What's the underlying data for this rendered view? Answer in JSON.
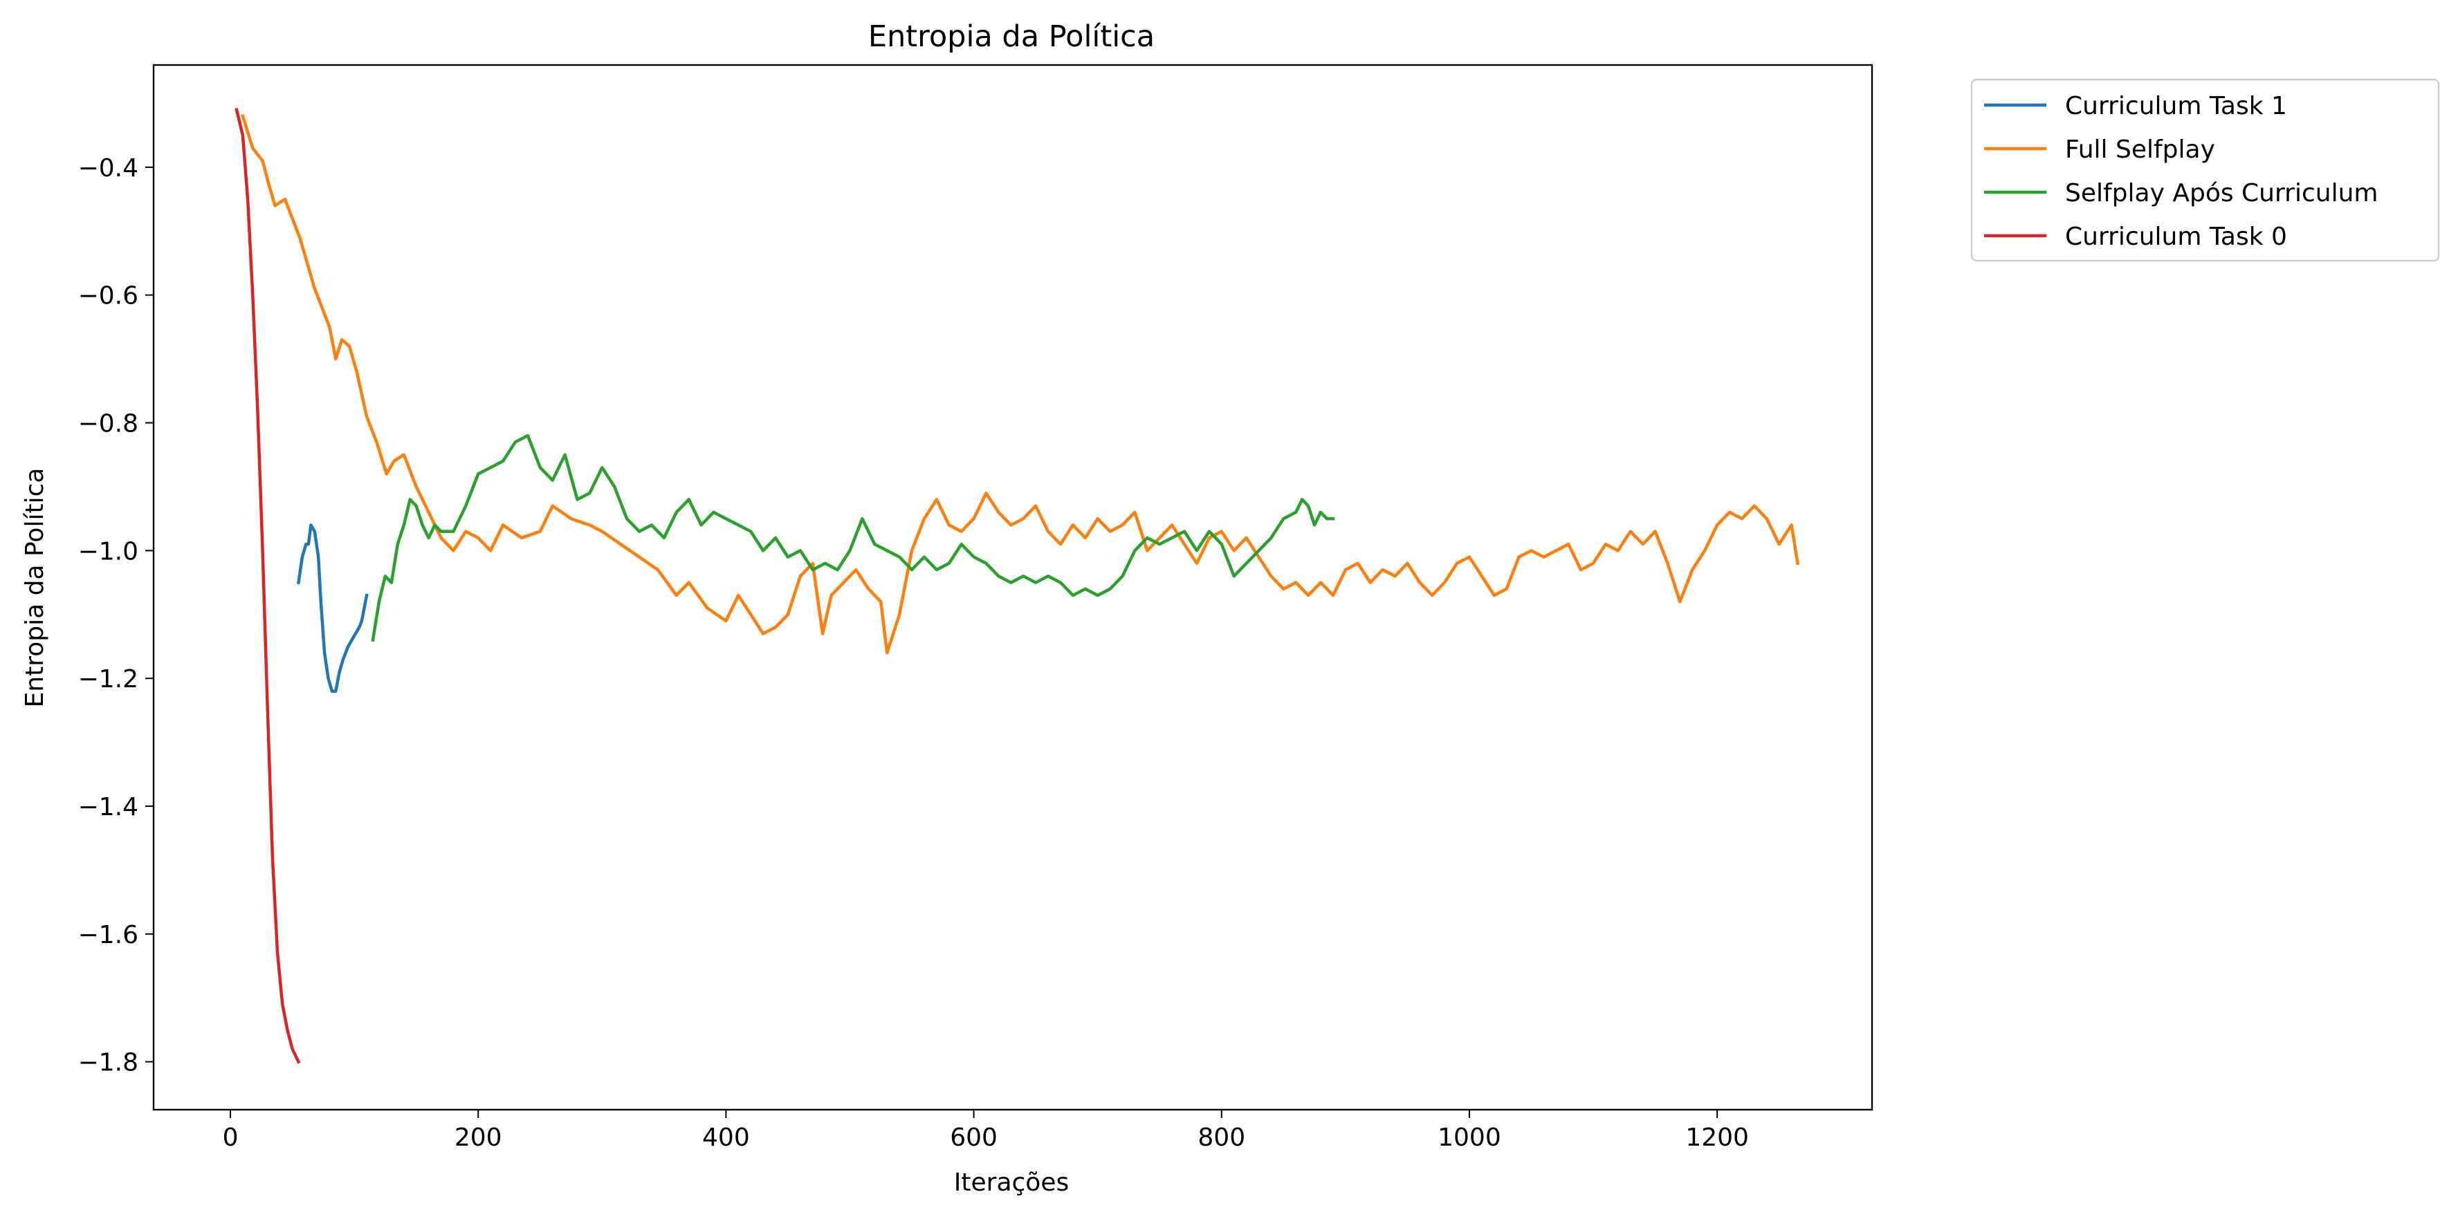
{
  "chart_data": {
    "type": "line",
    "title": "Entropia da Política",
    "xlabel": "Iterações",
    "ylabel": "Entropia da Política",
    "xlim": [
      -62,
      1325
    ],
    "ylim": [
      -1.875,
      -0.24
    ],
    "xticks": [
      0,
      200,
      400,
      600,
      800,
      1000,
      1200
    ],
    "yticks": [
      -1.8,
      -1.6,
      -1.4,
      -1.2,
      -1.0,
      -0.8,
      -0.6,
      -0.4
    ],
    "xtick_labels": [
      "0",
      "200",
      "400",
      "600",
      "800",
      "1000",
      "1200"
    ],
    "ytick_labels": [
      "−1.8",
      "−1.6",
      "−1.4",
      "−1.2",
      "−1.0",
      "−0.8",
      "−0.6",
      "−0.4"
    ],
    "grid": false,
    "legend_position": "outside-top-right",
    "series": [
      {
        "name": "Curriculum Task 1",
        "color": "#1f77b4",
        "points": [
          [
            55,
            -1.05
          ],
          [
            58,
            -1.01
          ],
          [
            61,
            -0.99
          ],
          [
            63,
            -0.99
          ],
          [
            65,
            -0.96
          ],
          [
            68,
            -0.97
          ],
          [
            71,
            -1.01
          ],
          [
            73,
            -1.08
          ],
          [
            76,
            -1.16
          ],
          [
            79,
            -1.2
          ],
          [
            82,
            -1.22
          ],
          [
            85,
            -1.22
          ],
          [
            88,
            -1.19
          ],
          [
            91,
            -1.17
          ],
          [
            95,
            -1.15
          ],
          [
            98,
            -1.14
          ],
          [
            101,
            -1.13
          ],
          [
            104,
            -1.12
          ],
          [
            106,
            -1.11
          ],
          [
            108,
            -1.09
          ],
          [
            110,
            -1.07
          ]
        ]
      },
      {
        "name": "Full Selfplay",
        "color": "#ff7f0e",
        "points": [
          [
            10,
            -0.32
          ],
          [
            18,
            -0.37
          ],
          [
            22,
            -0.38
          ],
          [
            26,
            -0.39
          ],
          [
            30,
            -0.42
          ],
          [
            36,
            -0.46
          ],
          [
            44,
            -0.45
          ],
          [
            50,
            -0.48
          ],
          [
            56,
            -0.51
          ],
          [
            62,
            -0.55
          ],
          [
            68,
            -0.59
          ],
          [
            74,
            -0.62
          ],
          [
            80,
            -0.65
          ],
          [
            85,
            -0.7
          ],
          [
            90,
            -0.67
          ],
          [
            96,
            -0.68
          ],
          [
            102,
            -0.72
          ],
          [
            110,
            -0.79
          ],
          [
            118,
            -0.83
          ],
          [
            126,
            -0.88
          ],
          [
            132,
            -0.86
          ],
          [
            140,
            -0.85
          ],
          [
            150,
            -0.9
          ],
          [
            160,
            -0.94
          ],
          [
            170,
            -0.98
          ],
          [
            180,
            -1.0
          ],
          [
            190,
            -0.97
          ],
          [
            200,
            -0.98
          ],
          [
            210,
            -1.0
          ],
          [
            220,
            -0.96
          ],
          [
            235,
            -0.98
          ],
          [
            250,
            -0.97
          ],
          [
            260,
            -0.93
          ],
          [
            275,
            -0.95
          ],
          [
            290,
            -0.96
          ],
          [
            300,
            -0.97
          ],
          [
            315,
            -0.99
          ],
          [
            330,
            -1.01
          ],
          [
            345,
            -1.03
          ],
          [
            360,
            -1.07
          ],
          [
            370,
            -1.05
          ],
          [
            385,
            -1.09
          ],
          [
            400,
            -1.11
          ],
          [
            410,
            -1.07
          ],
          [
            420,
            -1.1
          ],
          [
            430,
            -1.13
          ],
          [
            440,
            -1.12
          ],
          [
            450,
            -1.1
          ],
          [
            460,
            -1.04
          ],
          [
            470,
            -1.02
          ],
          [
            478,
            -1.13
          ],
          [
            485,
            -1.07
          ],
          [
            495,
            -1.05
          ],
          [
            505,
            -1.03
          ],
          [
            515,
            -1.06
          ],
          [
            525,
            -1.08
          ],
          [
            530,
            -1.16
          ],
          [
            540,
            -1.1
          ],
          [
            550,
            -1.0
          ],
          [
            560,
            -0.95
          ],
          [
            570,
            -0.92
          ],
          [
            580,
            -0.96
          ],
          [
            590,
            -0.97
          ],
          [
            600,
            -0.95
          ],
          [
            610,
            -0.91
          ],
          [
            620,
            -0.94
          ],
          [
            630,
            -0.96
          ],
          [
            640,
            -0.95
          ],
          [
            650,
            -0.93
          ],
          [
            660,
            -0.97
          ],
          [
            670,
            -0.99
          ],
          [
            680,
            -0.96
          ],
          [
            690,
            -0.98
          ],
          [
            700,
            -0.95
          ],
          [
            710,
            -0.97
          ],
          [
            720,
            -0.96
          ],
          [
            730,
            -0.94
          ],
          [
            740,
            -1.0
          ],
          [
            750,
            -0.98
          ],
          [
            760,
            -0.96
          ],
          [
            770,
            -0.99
          ],
          [
            780,
            -1.02
          ],
          [
            790,
            -0.98
          ],
          [
            800,
            -0.97
          ],
          [
            810,
            -1.0
          ],
          [
            820,
            -0.98
          ],
          [
            830,
            -1.01
          ],
          [
            840,
            -1.04
          ],
          [
            850,
            -1.06
          ],
          [
            860,
            -1.05
          ],
          [
            870,
            -1.07
          ],
          [
            880,
            -1.05
          ],
          [
            890,
            -1.07
          ],
          [
            900,
            -1.03
          ],
          [
            910,
            -1.02
          ],
          [
            920,
            -1.05
          ],
          [
            930,
            -1.03
          ],
          [
            940,
            -1.04
          ],
          [
            950,
            -1.02
          ],
          [
            960,
            -1.05
          ],
          [
            970,
            -1.07
          ],
          [
            980,
            -1.05
          ],
          [
            990,
            -1.02
          ],
          [
            1000,
            -1.01
          ],
          [
            1010,
            -1.04
          ],
          [
            1020,
            -1.07
          ],
          [
            1030,
            -1.06
          ],
          [
            1040,
            -1.01
          ],
          [
            1050,
            -1.0
          ],
          [
            1060,
            -1.01
          ],
          [
            1070,
            -1.0
          ],
          [
            1080,
            -0.99
          ],
          [
            1090,
            -1.03
          ],
          [
            1100,
            -1.02
          ],
          [
            1110,
            -0.99
          ],
          [
            1120,
            -1.0
          ],
          [
            1130,
            -0.97
          ],
          [
            1140,
            -0.99
          ],
          [
            1150,
            -0.97
          ],
          [
            1160,
            -1.02
          ],
          [
            1170,
            -1.08
          ],
          [
            1180,
            -1.03
          ],
          [
            1190,
            -1.0
          ],
          [
            1200,
            -0.96
          ],
          [
            1210,
            -0.94
          ],
          [
            1220,
            -0.95
          ],
          [
            1230,
            -0.93
          ],
          [
            1240,
            -0.95
          ],
          [
            1250,
            -0.99
          ],
          [
            1260,
            -0.96
          ],
          [
            1265,
            -1.02
          ]
        ]
      },
      {
        "name": "Selfplay Após Curriculum",
        "color": "#2ca02c",
        "points": [
          [
            115,
            -1.14
          ],
          [
            120,
            -1.08
          ],
          [
            125,
            -1.04
          ],
          [
            130,
            -1.05
          ],
          [
            135,
            -0.99
          ],
          [
            140,
            -0.96
          ],
          [
            145,
            -0.92
          ],
          [
            150,
            -0.93
          ],
          [
            155,
            -0.96
          ],
          [
            160,
            -0.98
          ],
          [
            165,
            -0.96
          ],
          [
            170,
            -0.97
          ],
          [
            180,
            -0.97
          ],
          [
            190,
            -0.93
          ],
          [
            200,
            -0.88
          ],
          [
            210,
            -0.87
          ],
          [
            220,
            -0.86
          ],
          [
            230,
            -0.83
          ],
          [
            240,
            -0.82
          ],
          [
            250,
            -0.87
          ],
          [
            260,
            -0.89
          ],
          [
            270,
            -0.85
          ],
          [
            280,
            -0.92
          ],
          [
            290,
            -0.91
          ],
          [
            300,
            -0.87
          ],
          [
            310,
            -0.9
          ],
          [
            320,
            -0.95
          ],
          [
            330,
            -0.97
          ],
          [
            340,
            -0.96
          ],
          [
            350,
            -0.98
          ],
          [
            360,
            -0.94
          ],
          [
            370,
            -0.92
          ],
          [
            380,
            -0.96
          ],
          [
            390,
            -0.94
          ],
          [
            400,
            -0.95
          ],
          [
            410,
            -0.96
          ],
          [
            420,
            -0.97
          ],
          [
            430,
            -1.0
          ],
          [
            440,
            -0.98
          ],
          [
            450,
            -1.01
          ],
          [
            460,
            -1.0
          ],
          [
            470,
            -1.03
          ],
          [
            480,
            -1.02
          ],
          [
            490,
            -1.03
          ],
          [
            500,
            -1.0
          ],
          [
            510,
            -0.95
          ],
          [
            520,
            -0.99
          ],
          [
            530,
            -1.0
          ],
          [
            540,
            -1.01
          ],
          [
            550,
            -1.03
          ],
          [
            560,
            -1.01
          ],
          [
            570,
            -1.03
          ],
          [
            580,
            -1.02
          ],
          [
            590,
            -0.99
          ],
          [
            600,
            -1.01
          ],
          [
            610,
            -1.02
          ],
          [
            620,
            -1.04
          ],
          [
            630,
            -1.05
          ],
          [
            640,
            -1.04
          ],
          [
            650,
            -1.05
          ],
          [
            660,
            -1.04
          ],
          [
            670,
            -1.05
          ],
          [
            680,
            -1.07
          ],
          [
            690,
            -1.06
          ],
          [
            700,
            -1.07
          ],
          [
            710,
            -1.06
          ],
          [
            720,
            -1.04
          ],
          [
            730,
            -1.0
          ],
          [
            740,
            -0.98
          ],
          [
            750,
            -0.99
          ],
          [
            760,
            -0.98
          ],
          [
            770,
            -0.97
          ],
          [
            780,
            -1.0
          ],
          [
            790,
            -0.97
          ],
          [
            800,
            -0.99
          ],
          [
            810,
            -1.04
          ],
          [
            820,
            -1.02
          ],
          [
            830,
            -1.0
          ],
          [
            840,
            -0.98
          ],
          [
            850,
            -0.95
          ],
          [
            860,
            -0.94
          ],
          [
            865,
            -0.92
          ],
          [
            870,
            -0.93
          ],
          [
            875,
            -0.96
          ],
          [
            880,
            -0.94
          ],
          [
            885,
            -0.95
          ],
          [
            890,
            -0.95
          ]
        ]
      },
      {
        "name": "Curriculum Task 0",
        "color": "#d62728",
        "points": [
          [
            5,
            -0.31
          ],
          [
            10,
            -0.35
          ],
          [
            14,
            -0.45
          ],
          [
            18,
            -0.6
          ],
          [
            22,
            -0.78
          ],
          [
            26,
            -1.0
          ],
          [
            30,
            -1.25
          ],
          [
            34,
            -1.48
          ],
          [
            38,
            -1.63
          ],
          [
            42,
            -1.71
          ],
          [
            46,
            -1.75
          ],
          [
            50,
            -1.78
          ],
          [
            55,
            -1.8
          ]
        ]
      }
    ]
  }
}
